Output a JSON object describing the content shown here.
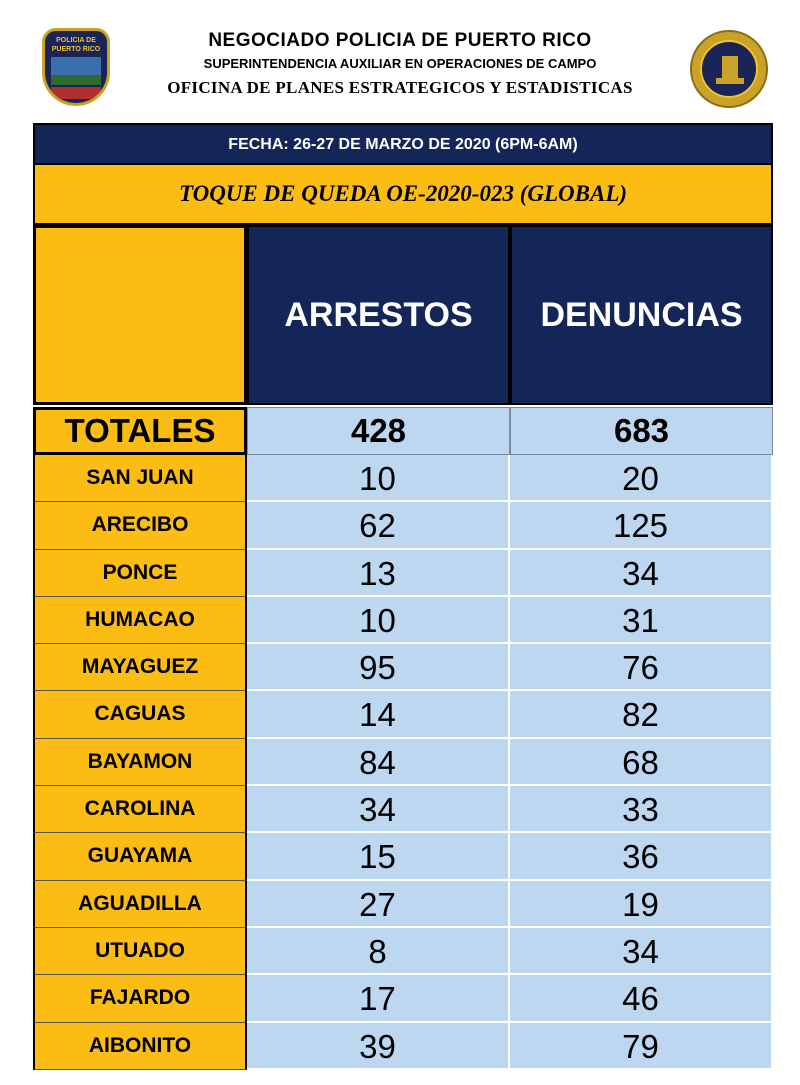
{
  "header": {
    "line1": "NEGOCIADO POLICIA DE PUERTO RICO",
    "line2": "SUPERINTENDENCIA AUXILIAR EN OPERACIONES DE CAMPO",
    "line3": "OFICINA DE PLANES ESTRATEGICOS Y ESTADISTICAS",
    "left_logo": {
      "icon": "police-badge-icon",
      "text_top": "POLICIA DE",
      "text_bottom": "PUERTO RICO"
    },
    "right_logo": {
      "icon": "office-seal-icon"
    }
  },
  "table": {
    "fecha": "FECHA: 26-27 DE MARZO DE 2020 (6PM-6AM)",
    "toque": "TOQUE DE QUEDA OE-2020-023 (GLOBAL)",
    "columns": [
      "ARRESTOS",
      "DENUNCIAS"
    ],
    "totals": {
      "label": "TOTALES",
      "arrestos": "428",
      "denuncias": "683"
    },
    "rows": [
      {
        "region": "SAN JUAN",
        "arrestos": "10",
        "denuncias": "20"
      },
      {
        "region": "ARECIBO",
        "arrestos": "62",
        "denuncias": "125"
      },
      {
        "region": "PONCE",
        "arrestos": "13",
        "denuncias": "34"
      },
      {
        "region": "HUMACAO",
        "arrestos": "10",
        "denuncias": "31"
      },
      {
        "region": "MAYAGUEZ",
        "arrestos": "95",
        "denuncias": "76"
      },
      {
        "region": "CAGUAS",
        "arrestos": "14",
        "denuncias": "82"
      },
      {
        "region": "BAYAMON",
        "arrestos": "84",
        "denuncias": "68"
      },
      {
        "region": "CAROLINA",
        "arrestos": "34",
        "denuncias": "33"
      },
      {
        "region": "GUAYAMA",
        "arrestos": "15",
        "denuncias": "36"
      },
      {
        "region": "AGUADILLA",
        "arrestos": "27",
        "denuncias": "19"
      },
      {
        "region": "UTUADO",
        "arrestos": "8",
        "denuncias": "34"
      },
      {
        "region": "FAJARDO",
        "arrestos": "17",
        "denuncias": "46"
      },
      {
        "region": "AIBONITO",
        "arrestos": "39",
        "denuncias": "79"
      }
    ]
  },
  "colors": {
    "navy": "#132657",
    "gold": "#fbbc13",
    "light_blue": "#bcd7ef"
  }
}
